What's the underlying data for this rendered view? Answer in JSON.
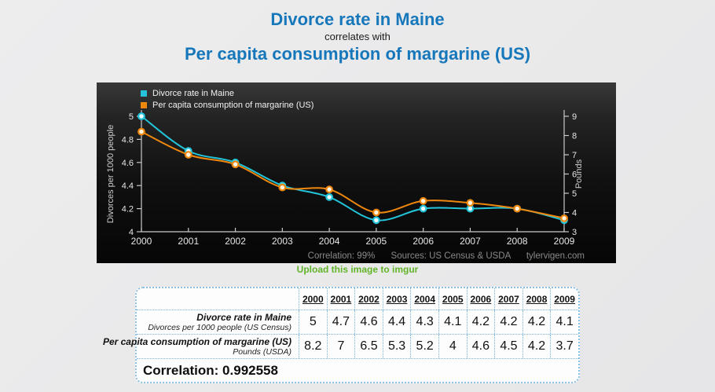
{
  "header": {
    "title_line1": "Divorce rate in Maine",
    "title_line2": "correlates with",
    "title_line3": "Per capita consumption of margarine (US)",
    "title_color": "#1777bb"
  },
  "chart_data": {
    "type": "line",
    "x": [
      2000,
      2001,
      2002,
      2003,
      2004,
      2005,
      2006,
      2007,
      2008,
      2009
    ],
    "series": [
      {
        "name": "Divorce rate in Maine",
        "axis": "left",
        "color": "#23c4da",
        "point_fill": "#eefbff",
        "values": [
          5,
          4.7,
          4.6,
          4.4,
          4.3,
          4.1,
          4.2,
          4.2,
          4.2,
          4.1
        ]
      },
      {
        "name": "Per capita consumption of margarine (US)",
        "axis": "right",
        "color": "#ee870e",
        "point_fill": "#fff4e0",
        "values": [
          8.2,
          7,
          6.5,
          5.3,
          5.2,
          4,
          4.6,
          4.5,
          4.2,
          3.7
        ]
      }
    ],
    "left_axis": {
      "label": "Divorces per 1000 people",
      "min": 4,
      "max": 5,
      "ticks": [
        4,
        4.2,
        4.4,
        4.6,
        4.8,
        5
      ]
    },
    "right_axis": {
      "label": "Pounds",
      "min": 3,
      "max": 9,
      "ticks": [
        3,
        4,
        5,
        6,
        7,
        8,
        9
      ]
    },
    "legend_position": "top-left",
    "grid": false,
    "background": "dark",
    "footer": {
      "correlation": "Correlation: 99%",
      "sources": "Sources: US Census & USDA",
      "site": "tylervigen.com"
    }
  },
  "imgur_link": {
    "label": "Upload this image to imgur"
  },
  "table": {
    "years": [
      "2000",
      "2001",
      "2002",
      "2003",
      "2004",
      "2005",
      "2006",
      "2007",
      "2008",
      "2009"
    ],
    "rows": [
      {
        "title": "Divorce rate in Maine",
        "subtitle": "Divorces per 1000 people (US Census)",
        "values": [
          "5",
          "4.7",
          "4.6",
          "4.4",
          "4.3",
          "4.1",
          "4.2",
          "4.2",
          "4.2",
          "4.1"
        ]
      },
      {
        "title": "Per capita consumption of margarine (US)",
        "subtitle": "Pounds (USDA)",
        "values": [
          "8.2",
          "7",
          "6.5",
          "5.3",
          "5.2",
          "4",
          "4.6",
          "4.5",
          "4.2",
          "3.7"
        ]
      }
    ],
    "correlation_label": "Correlation: 0.992558"
  }
}
